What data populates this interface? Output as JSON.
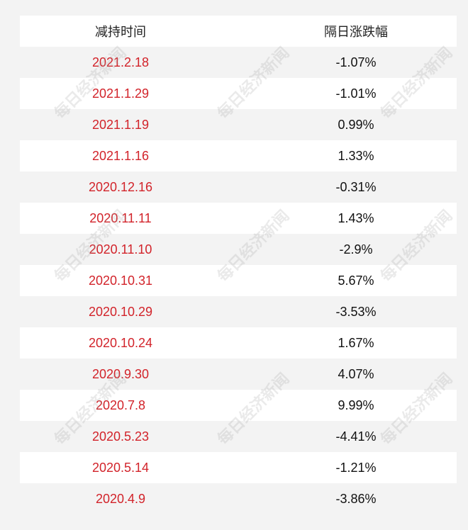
{
  "header": {
    "col1": "减持时间",
    "col2": "隔日涨跌幅"
  },
  "rows": [
    {
      "date": "2021.2.18",
      "change": "-1.07%"
    },
    {
      "date": "2021.1.29",
      "change": "-1.01%"
    },
    {
      "date": "2021.1.19",
      "change": "0.99%"
    },
    {
      "date": "2021.1.16",
      "change": "1.33%"
    },
    {
      "date": "2020.12.16",
      "change": "-0.31%"
    },
    {
      "date": "2020.11.11",
      "change": "1.43%"
    },
    {
      "date": "2020.11.10",
      "change": "-2.9%"
    },
    {
      "date": "2020.10.31",
      "change": "5.67%"
    },
    {
      "date": "2020.10.29",
      "change": "-3.53%"
    },
    {
      "date": "2020.10.24",
      "change": "1.67%"
    },
    {
      "date": "2020.9.30",
      "change": "4.07%"
    },
    {
      "date": "2020.7.8",
      "change": "9.99%"
    },
    {
      "date": "2020.5.23",
      "change": "-4.41%"
    },
    {
      "date": "2020.5.14",
      "change": "-1.21%"
    },
    {
      "date": "2020.4.9",
      "change": "-3.86%"
    }
  ],
  "watermark": "每日经济新闻"
}
